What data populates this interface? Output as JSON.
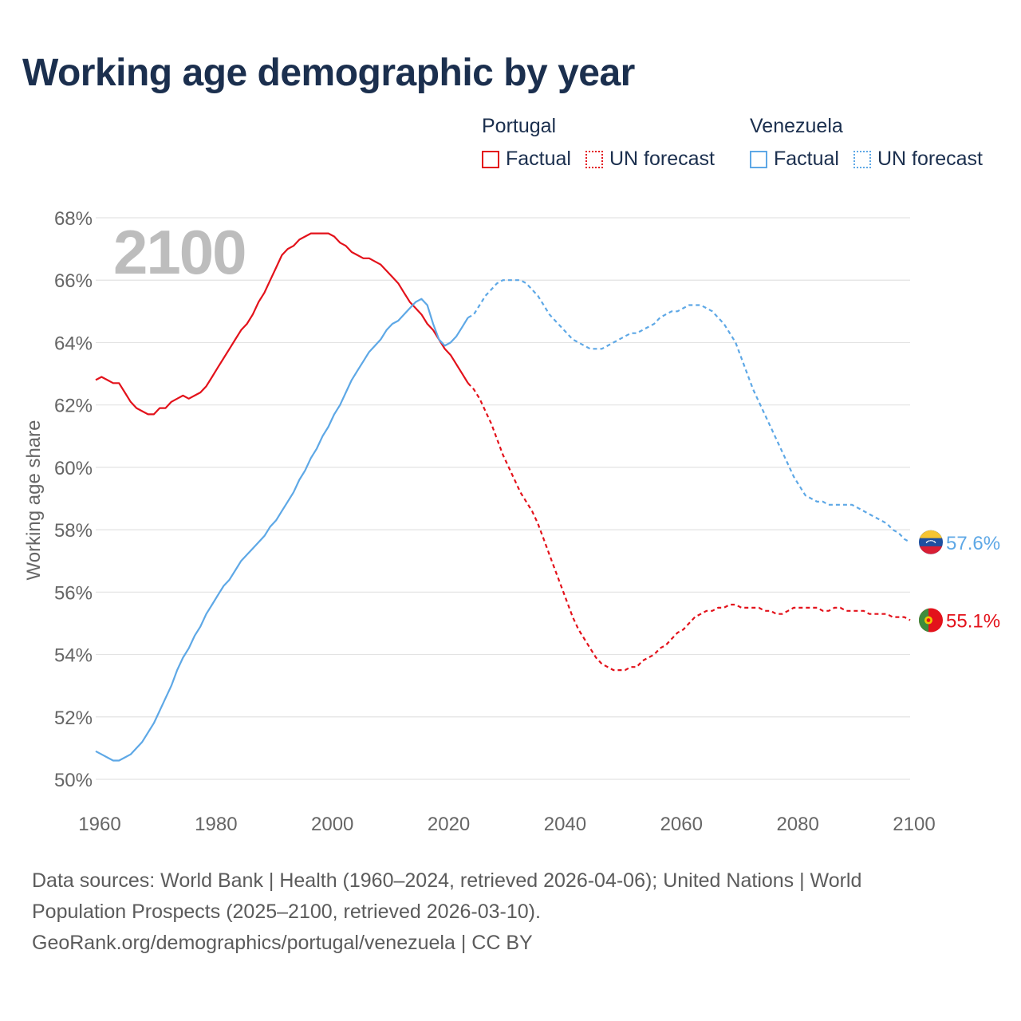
{
  "title": "Working age demographic by year",
  "legend": {
    "groups": [
      {
        "name": "Portugal",
        "factual": "Factual",
        "forecast": "UN forecast",
        "color": "#e3121b"
      },
      {
        "name": "Venezuela",
        "factual": "Factual",
        "forecast": "UN forecast",
        "color": "#5ea8e6"
      }
    ]
  },
  "year_overlay": "2100",
  "footer": {
    "line1": "Data sources: World Bank | Health (1960–2024, retrieved 2026-04-06); United Nations | World",
    "line2": "Population Prospects (2025–2100, retrieved 2026-03-10).",
    "line3": "GeoRank.org/demographics/portugal/venezuela | CC BY"
  },
  "chart_data": {
    "type": "line",
    "title": "Working age demographic by year",
    "xlabel": "",
    "ylabel": "Working age share",
    "xlim": [
      1960,
      2100
    ],
    "ylim": [
      50,
      68
    ],
    "x_ticks": [
      1960,
      1980,
      2000,
      2020,
      2040,
      2060,
      2080,
      2100
    ],
    "y_ticks": [
      50,
      52,
      54,
      56,
      58,
      60,
      62,
      64,
      66,
      68
    ],
    "y_tick_labels": [
      "50%",
      "52%",
      "54%",
      "56%",
      "58%",
      "60%",
      "62%",
      "64%",
      "66%",
      "68%"
    ],
    "grid": true,
    "forecast_start": 2024,
    "series": [
      {
        "name": "Portugal",
        "color": "#e3121b",
        "end_label": "55.1%",
        "flag": "portugal",
        "points": [
          [
            1960,
            62.8
          ],
          [
            1961,
            62.9
          ],
          [
            1962,
            62.8
          ],
          [
            1963,
            62.7
          ],
          [
            1964,
            62.7
          ],
          [
            1965,
            62.4
          ],
          [
            1966,
            62.1
          ],
          [
            1967,
            61.9
          ],
          [
            1968,
            61.8
          ],
          [
            1969,
            61.7
          ],
          [
            1970,
            61.7
          ],
          [
            1971,
            61.9
          ],
          [
            1972,
            61.9
          ],
          [
            1973,
            62.1
          ],
          [
            1974,
            62.2
          ],
          [
            1975,
            62.3
          ],
          [
            1976,
            62.2
          ],
          [
            1977,
            62.3
          ],
          [
            1978,
            62.4
          ],
          [
            1979,
            62.6
          ],
          [
            1980,
            62.9
          ],
          [
            1981,
            63.2
          ],
          [
            1982,
            63.5
          ],
          [
            1983,
            63.8
          ],
          [
            1984,
            64.1
          ],
          [
            1985,
            64.4
          ],
          [
            1986,
            64.6
          ],
          [
            1987,
            64.9
          ],
          [
            1988,
            65.3
          ],
          [
            1989,
            65.6
          ],
          [
            1990,
            66.0
          ],
          [
            1991,
            66.4
          ],
          [
            1992,
            66.8
          ],
          [
            1993,
            67.0
          ],
          [
            1994,
            67.1
          ],
          [
            1995,
            67.3
          ],
          [
            1996,
            67.4
          ],
          [
            1997,
            67.5
          ],
          [
            1998,
            67.5
          ],
          [
            1999,
            67.5
          ],
          [
            2000,
            67.5
          ],
          [
            2001,
            67.4
          ],
          [
            2002,
            67.2
          ],
          [
            2003,
            67.1
          ],
          [
            2004,
            66.9
          ],
          [
            2005,
            66.8
          ],
          [
            2006,
            66.7
          ],
          [
            2007,
            66.7
          ],
          [
            2008,
            66.6
          ],
          [
            2009,
            66.5
          ],
          [
            2010,
            66.3
          ],
          [
            2011,
            66.1
          ],
          [
            2012,
            65.9
          ],
          [
            2013,
            65.6
          ],
          [
            2014,
            65.3
          ],
          [
            2015,
            65.1
          ],
          [
            2016,
            64.9
          ],
          [
            2017,
            64.6
          ],
          [
            2018,
            64.4
          ],
          [
            2019,
            64.1
          ],
          [
            2020,
            63.8
          ],
          [
            2021,
            63.6
          ],
          [
            2022,
            63.3
          ],
          [
            2023,
            63.0
          ],
          [
            2024,
            62.7
          ],
          [
            2025,
            62.5
          ],
          [
            2026,
            62.2
          ],
          [
            2027,
            61.8
          ],
          [
            2028,
            61.4
          ],
          [
            2029,
            60.9
          ],
          [
            2030,
            60.4
          ],
          [
            2031,
            60.0
          ],
          [
            2032,
            59.6
          ],
          [
            2033,
            59.2
          ],
          [
            2034,
            58.9
          ],
          [
            2035,
            58.6
          ],
          [
            2036,
            58.2
          ],
          [
            2037,
            57.7
          ],
          [
            2038,
            57.2
          ],
          [
            2039,
            56.7
          ],
          [
            2040,
            56.2
          ],
          [
            2041,
            55.7
          ],
          [
            2042,
            55.2
          ],
          [
            2043,
            54.8
          ],
          [
            2044,
            54.5
          ],
          [
            2045,
            54.2
          ],
          [
            2046,
            53.9
          ],
          [
            2047,
            53.7
          ],
          [
            2048,
            53.6
          ],
          [
            2049,
            53.5
          ],
          [
            2050,
            53.5
          ],
          [
            2051,
            53.5
          ],
          [
            2052,
            53.6
          ],
          [
            2053,
            53.6
          ],
          [
            2054,
            53.8
          ],
          [
            2055,
            53.9
          ],
          [
            2056,
            54.0
          ],
          [
            2057,
            54.2
          ],
          [
            2058,
            54.3
          ],
          [
            2059,
            54.5
          ],
          [
            2060,
            54.7
          ],
          [
            2061,
            54.8
          ],
          [
            2062,
            55.0
          ],
          [
            2063,
            55.2
          ],
          [
            2064,
            55.3
          ],
          [
            2065,
            55.4
          ],
          [
            2066,
            55.4
          ],
          [
            2067,
            55.5
          ],
          [
            2068,
            55.5
          ],
          [
            2069,
            55.6
          ],
          [
            2070,
            55.6
          ],
          [
            2071,
            55.5
          ],
          [
            2072,
            55.5
          ],
          [
            2073,
            55.5
          ],
          [
            2074,
            55.5
          ],
          [
            2075,
            55.4
          ],
          [
            2076,
            55.4
          ],
          [
            2077,
            55.3
          ],
          [
            2078,
            55.3
          ],
          [
            2079,
            55.4
          ],
          [
            2080,
            55.5
          ],
          [
            2081,
            55.5
          ],
          [
            2082,
            55.5
          ],
          [
            2083,
            55.5
          ],
          [
            2084,
            55.5
          ],
          [
            2085,
            55.4
          ],
          [
            2086,
            55.4
          ],
          [
            2087,
            55.5
          ],
          [
            2088,
            55.5
          ],
          [
            2089,
            55.4
          ],
          [
            2090,
            55.4
          ],
          [
            2091,
            55.4
          ],
          [
            2092,
            55.4
          ],
          [
            2093,
            55.3
          ],
          [
            2094,
            55.3
          ],
          [
            2095,
            55.3
          ],
          [
            2096,
            55.3
          ],
          [
            2097,
            55.2
          ],
          [
            2098,
            55.2
          ],
          [
            2099,
            55.2
          ],
          [
            2100,
            55.1
          ]
        ]
      },
      {
        "name": "Venezuela",
        "color": "#5ea8e6",
        "end_label": "57.6%",
        "flag": "venezuela",
        "points": [
          [
            1960,
            50.9
          ],
          [
            1961,
            50.8
          ],
          [
            1962,
            50.7
          ],
          [
            1963,
            50.6
          ],
          [
            1964,
            50.6
          ],
          [
            1965,
            50.7
          ],
          [
            1966,
            50.8
          ],
          [
            1967,
            51.0
          ],
          [
            1968,
            51.2
          ],
          [
            1969,
            51.5
          ],
          [
            1970,
            51.8
          ],
          [
            1971,
            52.2
          ],
          [
            1972,
            52.6
          ],
          [
            1973,
            53.0
          ],
          [
            1974,
            53.5
          ],
          [
            1975,
            53.9
          ],
          [
            1976,
            54.2
          ],
          [
            1977,
            54.6
          ],
          [
            1978,
            54.9
          ],
          [
            1979,
            55.3
          ],
          [
            1980,
            55.6
          ],
          [
            1981,
            55.9
          ],
          [
            1982,
            56.2
          ],
          [
            1983,
            56.4
          ],
          [
            1984,
            56.7
          ],
          [
            1985,
            57.0
          ],
          [
            1986,
            57.2
          ],
          [
            1987,
            57.4
          ],
          [
            1988,
            57.6
          ],
          [
            1989,
            57.8
          ],
          [
            1990,
            58.1
          ],
          [
            1991,
            58.3
          ],
          [
            1992,
            58.6
          ],
          [
            1993,
            58.9
          ],
          [
            1994,
            59.2
          ],
          [
            1995,
            59.6
          ],
          [
            1996,
            59.9
          ],
          [
            1997,
            60.3
          ],
          [
            1998,
            60.6
          ],
          [
            1999,
            61.0
          ],
          [
            2000,
            61.3
          ],
          [
            2001,
            61.7
          ],
          [
            2002,
            62.0
          ],
          [
            2003,
            62.4
          ],
          [
            2004,
            62.8
          ],
          [
            2005,
            63.1
          ],
          [
            2006,
            63.4
          ],
          [
            2007,
            63.7
          ],
          [
            2008,
            63.9
          ],
          [
            2009,
            64.1
          ],
          [
            2010,
            64.4
          ],
          [
            2011,
            64.6
          ],
          [
            2012,
            64.7
          ],
          [
            2013,
            64.9
          ],
          [
            2014,
            65.1
          ],
          [
            2015,
            65.3
          ],
          [
            2016,
            65.4
          ],
          [
            2017,
            65.2
          ],
          [
            2018,
            64.6
          ],
          [
            2019,
            64.1
          ],
          [
            2020,
            63.9
          ],
          [
            2021,
            64.0
          ],
          [
            2022,
            64.2
          ],
          [
            2023,
            64.5
          ],
          [
            2024,
            64.8
          ],
          [
            2025,
            64.9
          ],
          [
            2026,
            65.2
          ],
          [
            2027,
            65.5
          ],
          [
            2028,
            65.7
          ],
          [
            2029,
            65.9
          ],
          [
            2030,
            66.0
          ],
          [
            2031,
            66.0
          ],
          [
            2032,
            66.0
          ],
          [
            2033,
            66.0
          ],
          [
            2034,
            65.9
          ],
          [
            2035,
            65.7
          ],
          [
            2036,
            65.5
          ],
          [
            2037,
            65.2
          ],
          [
            2038,
            64.9
          ],
          [
            2039,
            64.7
          ],
          [
            2040,
            64.5
          ],
          [
            2041,
            64.3
          ],
          [
            2042,
            64.1
          ],
          [
            2043,
            64.0
          ],
          [
            2044,
            63.9
          ],
          [
            2045,
            63.8
          ],
          [
            2046,
            63.8
          ],
          [
            2047,
            63.8
          ],
          [
            2048,
            63.9
          ],
          [
            2049,
            64.0
          ],
          [
            2050,
            64.1
          ],
          [
            2051,
            64.2
          ],
          [
            2052,
            64.3
          ],
          [
            2053,
            64.3
          ],
          [
            2054,
            64.4
          ],
          [
            2055,
            64.5
          ],
          [
            2056,
            64.6
          ],
          [
            2057,
            64.8
          ],
          [
            2058,
            64.9
          ],
          [
            2059,
            65.0
          ],
          [
            2060,
            65.0
          ],
          [
            2061,
            65.1
          ],
          [
            2062,
            65.2
          ],
          [
            2063,
            65.2
          ],
          [
            2064,
            65.2
          ],
          [
            2065,
            65.1
          ],
          [
            2066,
            65.0
          ],
          [
            2067,
            64.8
          ],
          [
            2068,
            64.6
          ],
          [
            2069,
            64.3
          ],
          [
            2070,
            64.0
          ],
          [
            2071,
            63.5
          ],
          [
            2072,
            63.0
          ],
          [
            2073,
            62.5
          ],
          [
            2074,
            62.1
          ],
          [
            2075,
            61.7
          ],
          [
            2076,
            61.3
          ],
          [
            2077,
            60.9
          ],
          [
            2078,
            60.5
          ],
          [
            2079,
            60.1
          ],
          [
            2080,
            59.7
          ],
          [
            2081,
            59.4
          ],
          [
            2082,
            59.1
          ],
          [
            2083,
            59.0
          ],
          [
            2084,
            58.9
          ],
          [
            2085,
            58.9
          ],
          [
            2086,
            58.8
          ],
          [
            2087,
            58.8
          ],
          [
            2088,
            58.8
          ],
          [
            2089,
            58.8
          ],
          [
            2090,
            58.8
          ],
          [
            2091,
            58.7
          ],
          [
            2092,
            58.6
          ],
          [
            2093,
            58.5
          ],
          [
            2094,
            58.4
          ],
          [
            2095,
            58.3
          ],
          [
            2096,
            58.2
          ],
          [
            2097,
            58.0
          ],
          [
            2098,
            57.9
          ],
          [
            2099,
            57.7
          ],
          [
            2100,
            57.6
          ]
        ]
      }
    ]
  }
}
